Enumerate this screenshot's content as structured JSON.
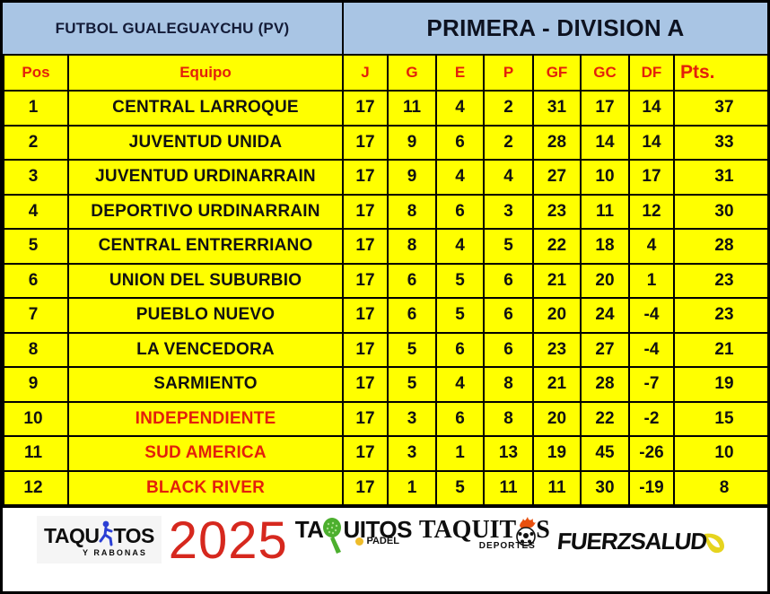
{
  "header": {
    "league": "FUTBOL GUALEGUAYCHU (PV)",
    "division": "PRIMERA - DIVISION A"
  },
  "table": {
    "columns": [
      {
        "key": "pos",
        "label": "Pos"
      },
      {
        "key": "team",
        "label": "Equipo"
      },
      {
        "key": "j",
        "label": "J"
      },
      {
        "key": "g",
        "label": "G"
      },
      {
        "key": "e",
        "label": "E"
      },
      {
        "key": "p",
        "label": "P"
      },
      {
        "key": "gf",
        "label": "GF"
      },
      {
        "key": "gc",
        "label": "GC"
      },
      {
        "key": "df",
        "label": "DF"
      },
      {
        "key": "pts",
        "label": "Pts."
      }
    ],
    "rows": [
      {
        "pos": 1,
        "team": "CENTRAL LARROQUE",
        "j": 17,
        "g": 11,
        "e": 4,
        "p": 2,
        "gf": 31,
        "gc": 17,
        "df": 14,
        "pts": 37,
        "danger": false
      },
      {
        "pos": 2,
        "team": "JUVENTUD UNIDA",
        "j": 17,
        "g": 9,
        "e": 6,
        "p": 2,
        "gf": 28,
        "gc": 14,
        "df": 14,
        "pts": 33,
        "danger": false
      },
      {
        "pos": 3,
        "team": "JUVENTUD URDINARRAIN",
        "j": 17,
        "g": 9,
        "e": 4,
        "p": 4,
        "gf": 27,
        "gc": 10,
        "df": 17,
        "pts": 31,
        "danger": false
      },
      {
        "pos": 4,
        "team": "DEPORTIVO URDINARRAIN",
        "j": 17,
        "g": 8,
        "e": 6,
        "p": 3,
        "gf": 23,
        "gc": 11,
        "df": 12,
        "pts": 30,
        "danger": false
      },
      {
        "pos": 5,
        "team": "CENTRAL ENTRERRIANO",
        "j": 17,
        "g": 8,
        "e": 4,
        "p": 5,
        "gf": 22,
        "gc": 18,
        "df": 4,
        "pts": 28,
        "danger": false
      },
      {
        "pos": 6,
        "team": "UNION DEL SUBURBIO",
        "j": 17,
        "g": 6,
        "e": 5,
        "p": 6,
        "gf": 21,
        "gc": 20,
        "df": 1,
        "pts": 23,
        "danger": false
      },
      {
        "pos": 7,
        "team": "PUEBLO NUEVO",
        "j": 17,
        "g": 6,
        "e": 5,
        "p": 6,
        "gf": 20,
        "gc": 24,
        "df": -4,
        "pts": 23,
        "danger": false
      },
      {
        "pos": 8,
        "team": "LA VENCEDORA",
        "j": 17,
        "g": 5,
        "e": 6,
        "p": 6,
        "gf": 23,
        "gc": 27,
        "df": -4,
        "pts": 21,
        "danger": false
      },
      {
        "pos": 9,
        "team": "SARMIENTO",
        "j": 17,
        "g": 5,
        "e": 4,
        "p": 8,
        "gf": 21,
        "gc": 28,
        "df": -7,
        "pts": 19,
        "danger": false
      },
      {
        "pos": 10,
        "team": "INDEPENDIENTE",
        "j": 17,
        "g": 3,
        "e": 6,
        "p": 8,
        "gf": 20,
        "gc": 22,
        "df": -2,
        "pts": 15,
        "danger": true
      },
      {
        "pos": 11,
        "team": "SUD AMERICA",
        "j": 17,
        "g": 3,
        "e": 1,
        "p": 13,
        "gf": 19,
        "gc": 45,
        "df": -26,
        "pts": 10,
        "danger": true
      },
      {
        "pos": 12,
        "team": "BLACK RIVER",
        "j": 17,
        "g": 1,
        "e": 5,
        "p": 11,
        "gf": 11,
        "gc": 30,
        "df": -19,
        "pts": 8,
        "danger": true
      }
    ]
  },
  "footer": {
    "year": "2025",
    "logos": [
      {
        "id": "taquitos-rabonas",
        "text_a": "TAQU",
        "text_b": "TOS",
        "sub": "Y RABONAS"
      },
      {
        "id": "taquitos-padel",
        "text_a": "TA",
        "text_b": "UITOS",
        "sub": "PADEL"
      },
      {
        "id": "taquitos-deportes",
        "text_a": "TAQUIT",
        "text_b": "S",
        "sub": "DEPORTES"
      },
      {
        "id": "fuerzsalud",
        "text": "FUERZSALUD"
      }
    ]
  },
  "colors": {
    "cell_yellow": "#ffff00",
    "band_blue": "#a9c5e4",
    "accent_red": "#e3200b",
    "title_navy": "#141c38",
    "year_red": "#d6281e",
    "padel_green": "#4caf2e",
    "flame_orange": "#e8500f",
    "swoosh_yellow": "#e6d41f"
  }
}
